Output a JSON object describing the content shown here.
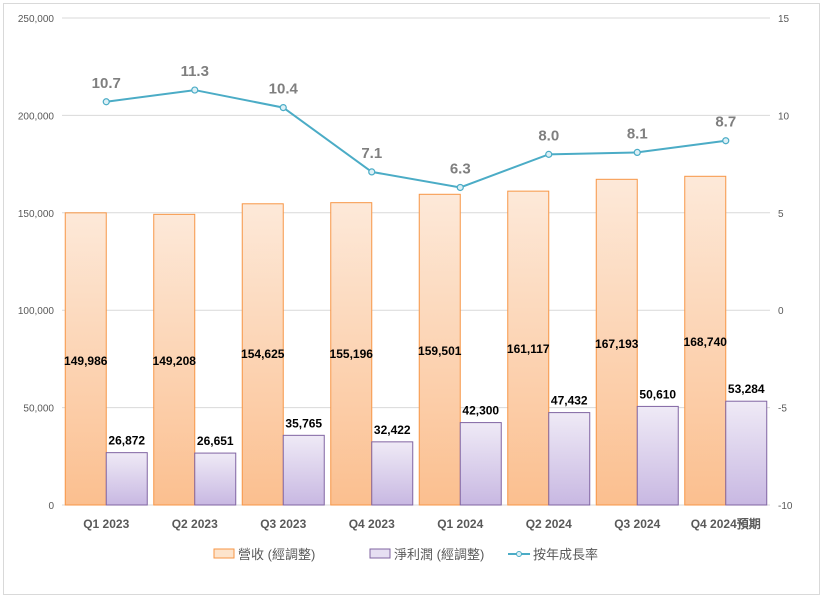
{
  "chart_data": {
    "type": "bar",
    "categories": [
      "Q1 2023",
      "Q2 2023",
      "Q3 2023",
      "Q4 2023",
      "Q1 2024",
      "Q2 2024",
      "Q3 2024",
      "Q4 2024預期"
    ],
    "series": [
      {
        "name": "營收 (經調整)",
        "type": "bar",
        "axis": "left",
        "color": "#f4a460",
        "values": [
          149986,
          149208,
          154625,
          155196,
          159501,
          161117,
          167193,
          168740
        ],
        "labels": [
          "149,986",
          "149,208",
          "154,625",
          "155,196",
          "159,501",
          "161,117",
          "167,193",
          "168,740"
        ]
      },
      {
        "name": "淨利潤 (經調整)",
        "type": "bar",
        "axis": "left",
        "color": "#8064a2",
        "values": [
          26872,
          26651,
          35765,
          32422,
          42300,
          47432,
          50610,
          53284
        ],
        "labels": [
          "26,872",
          "26,651",
          "35,765",
          "32,422",
          "42,300",
          "47,432",
          "50,610",
          "53,284"
        ]
      },
      {
        "name": "按年成長率",
        "type": "line",
        "axis": "right",
        "color": "#4bacc6",
        "values": [
          10.7,
          11.3,
          10.4,
          7.1,
          6.3,
          8.0,
          8.1,
          8.7
        ],
        "labels": [
          "10.7",
          "11.3",
          "10.4",
          "7.1",
          "6.3",
          "8.0",
          "8.1",
          "8.7"
        ]
      }
    ],
    "ylim_left": [
      0,
      250000
    ],
    "yticks_left": [
      "0",
      "50,000",
      "100,000",
      "150,000",
      "200,000",
      "250,000"
    ],
    "ylim_right": [
      -10,
      15
    ],
    "yticks_right": [
      "-10",
      "-5",
      "0",
      "5",
      "10",
      "15"
    ],
    "grid": true,
    "legend": "bottom"
  }
}
